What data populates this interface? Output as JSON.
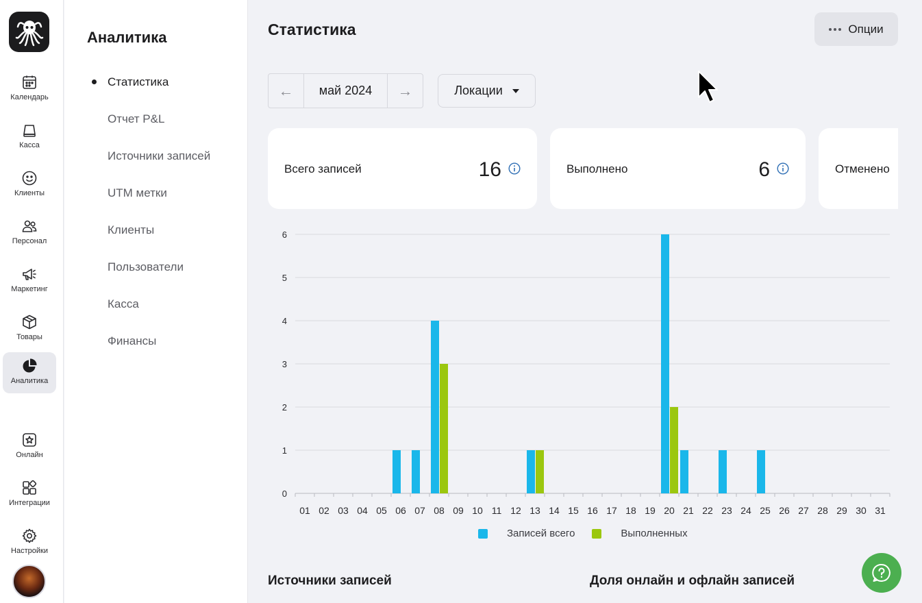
{
  "colors": {
    "accent_blue": "#1ab7ea",
    "accent_green": "#9bc70f",
    "help_green": "#4caf50"
  },
  "rail": {
    "items": [
      {
        "label": "Календарь",
        "icon": "calendar-icon"
      },
      {
        "label": "Касса",
        "icon": "cash-register-icon"
      },
      {
        "label": "Клиенты",
        "icon": "smile-icon"
      },
      {
        "label": "Персонал",
        "icon": "staff-icon"
      },
      {
        "label": "Маркетинг",
        "icon": "megaphone-icon"
      },
      {
        "label": "Товары",
        "icon": "box-icon"
      },
      {
        "label": "Аналитика",
        "icon": "pie-chart-icon",
        "active": true
      },
      {
        "label": "Онлайн",
        "icon": "star-badge-icon"
      },
      {
        "label": "Интеграции",
        "icon": "puzzle-icon"
      },
      {
        "label": "Настройки",
        "icon": "gear-icon"
      }
    ]
  },
  "submenu": {
    "title": "Аналитика",
    "items": [
      {
        "label": "Статистика",
        "active": true
      },
      {
        "label": "Отчет P&L"
      },
      {
        "label": "Источники записей"
      },
      {
        "label": "UTM метки"
      },
      {
        "label": "Клиенты"
      },
      {
        "label": "Пользователи"
      },
      {
        "label": "Касса"
      },
      {
        "label": "Финансы"
      }
    ]
  },
  "header": {
    "title": "Статистика",
    "options_label": "Опции"
  },
  "filters": {
    "date": "май 2024",
    "location_label": "Локации"
  },
  "cards": [
    {
      "label": "Всего записей",
      "value": "16"
    },
    {
      "label": "Выполнено",
      "value": "6"
    },
    {
      "label": "Отменено",
      "value": ""
    }
  ],
  "chart_data": {
    "type": "bar",
    "categories": [
      "01",
      "02",
      "03",
      "04",
      "05",
      "06",
      "07",
      "08",
      "09",
      "10",
      "11",
      "12",
      "13",
      "14",
      "15",
      "16",
      "17",
      "18",
      "19",
      "20",
      "21",
      "22",
      "23",
      "24",
      "25",
      "26",
      "27",
      "28",
      "29",
      "30",
      "31"
    ],
    "series": [
      {
        "name": "Записей всего",
        "color": "#1ab7ea",
        "values": [
          0,
          0,
          0,
          0,
          0,
          1,
          1,
          4,
          0,
          0,
          0,
          0,
          1,
          0,
          0,
          0,
          0,
          0,
          0,
          6,
          1,
          0,
          1,
          0,
          1,
          0,
          0,
          0,
          0,
          0,
          0
        ]
      },
      {
        "name": "Выполненных",
        "color": "#9bc70f",
        "values": [
          0,
          0,
          0,
          0,
          0,
          0,
          0,
          3,
          0,
          0,
          0,
          0,
          1,
          0,
          0,
          0,
          0,
          0,
          0,
          2,
          0,
          0,
          0,
          0,
          0,
          0,
          0,
          0,
          0,
          0,
          0
        ]
      }
    ],
    "yticks": [
      "0",
      "1",
      "2",
      "3",
      "4",
      "5",
      "6"
    ],
    "ylim": [
      0,
      6
    ],
    "grid": true,
    "legend": "bottom-center"
  },
  "sections": {
    "sources_title": "Источники записей",
    "share_title": "Доля онлайн и офлайн записей"
  }
}
